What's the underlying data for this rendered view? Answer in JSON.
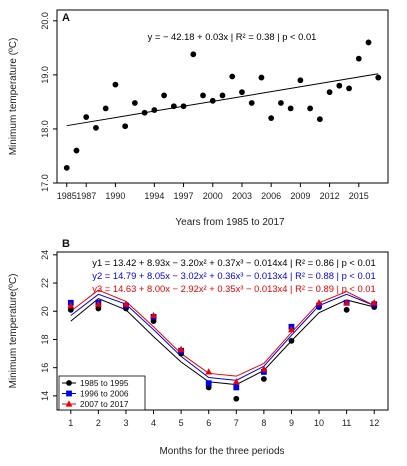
{
  "chart_data": [
    {
      "panel": "A",
      "type": "scatter",
      "xlabel": "Years from 1985 to 2017",
      "ylabel": "Minimum temperature (ºC)",
      "xlim": [
        1984,
        2018
      ],
      "ylim": [
        17.0,
        20.2
      ],
      "xticks": [
        "1985",
        "1987",
        "1990",
        "1994",
        "1997",
        "2000",
        "2003",
        "2006",
        "2009",
        "2012",
        "2015"
      ],
      "yticks": [
        "17.0",
        "18.0",
        "19.0",
        "20.0"
      ],
      "annotation": "y = − 42.18 + 0.03x | R² = 0.38 | p < 0.01",
      "x": [
        1985,
        1986,
        1987,
        1988,
        1989,
        1990,
        1991,
        1992,
        1993,
        1994,
        1995,
        1996,
        1997,
        1998,
        1999,
        2000,
        2001,
        2002,
        2003,
        2004,
        2005,
        2006,
        2007,
        2008,
        2009,
        2010,
        2011,
        2012,
        2013,
        2014,
        2015,
        2016,
        2017
      ],
      "values": [
        17.28,
        17.6,
        18.22,
        18.02,
        18.38,
        18.82,
        18.05,
        18.48,
        18.3,
        18.35,
        18.62,
        18.42,
        18.42,
        19.38,
        18.62,
        18.52,
        18.62,
        18.97,
        18.68,
        18.48,
        18.95,
        18.2,
        18.48,
        18.38,
        18.9,
        18.38,
        18.18,
        18.68,
        18.8,
        18.75,
        19.3,
        19.6,
        18.95
      ],
      "trend": {
        "x": [
          1985,
          2017
        ],
        "y": [
          18.06,
          19.02
        ]
      },
      "grid": false,
      "legend": "none"
    },
    {
      "panel": "B",
      "type": "line",
      "xlabel": "Months for the three periods",
      "ylabel": "Minimum temperature(ºC)",
      "xlim": [
        0.5,
        12.5
      ],
      "ylim": [
        13,
        24.2
      ],
      "categories": [
        "1",
        "2",
        "3",
        "4",
        "5",
        "6",
        "7",
        "8",
        "9",
        "10",
        "11",
        "12"
      ],
      "yticks": [
        "14",
        "16",
        "18",
        "20",
        "22",
        "24"
      ],
      "grid": false,
      "legend": "bottom-left",
      "series": [
        {
          "name": "1985 to 1995",
          "color": "#000000",
          "marker": "circle",
          "values": [
            20.1,
            20.2,
            20.2,
            19.3,
            17.0,
            14.6,
            13.8,
            15.2,
            17.9,
            20.3,
            20.1,
            20.3
          ],
          "fit": [
            19.3,
            20.9,
            20.1,
            18.2,
            16.4,
            15.0,
            14.8,
            15.8,
            17.9,
            19.9,
            20.8,
            20.3
          ]
        },
        {
          "name": "1996 to 2006",
          "color": "#0000ee",
          "marker": "square",
          "values": [
            20.6,
            20.6,
            20.4,
            19.6,
            17.2,
            14.9,
            14.6,
            15.7,
            18.9,
            20.4,
            20.6,
            20.5
          ],
          "fit": [
            19.7,
            21.2,
            20.5,
            18.7,
            16.8,
            15.3,
            15.1,
            16.1,
            18.3,
            20.4,
            21.2,
            20.4
          ]
        },
        {
          "name": "2007 to 2017",
          "color": "#ee0000",
          "marker": "triangle",
          "values": [
            20.4,
            20.5,
            20.5,
            19.7,
            17.3,
            15.7,
            15.0,
            15.9,
            18.7,
            20.6,
            20.6,
            20.6
          ],
          "fit": [
            20.0,
            21.5,
            20.7,
            18.9,
            17.0,
            15.6,
            15.4,
            16.3,
            18.5,
            20.6,
            21.4,
            20.4
          ]
        }
      ],
      "equations": [
        {
          "text": "y1 = 13.42 + 8.93x − 3.20x² + 0.37x³ − 0.014x4 | R² = 0.86 | p < 0.01",
          "color": "#000000"
        },
        {
          "text": "y2 = 14.79 + 8.05x − 3.02x² + 0.36x³ − 0.013x4 | R² = 0.88 | p < 0.01",
          "color": "#0000ee"
        },
        {
          "text": "y3 = 14.63 + 8.00x − 2.92x² + 0.35x³ − 0.013x4 | R² = 0.89 | p < 0.01",
          "color": "#ee0000"
        }
      ]
    }
  ]
}
